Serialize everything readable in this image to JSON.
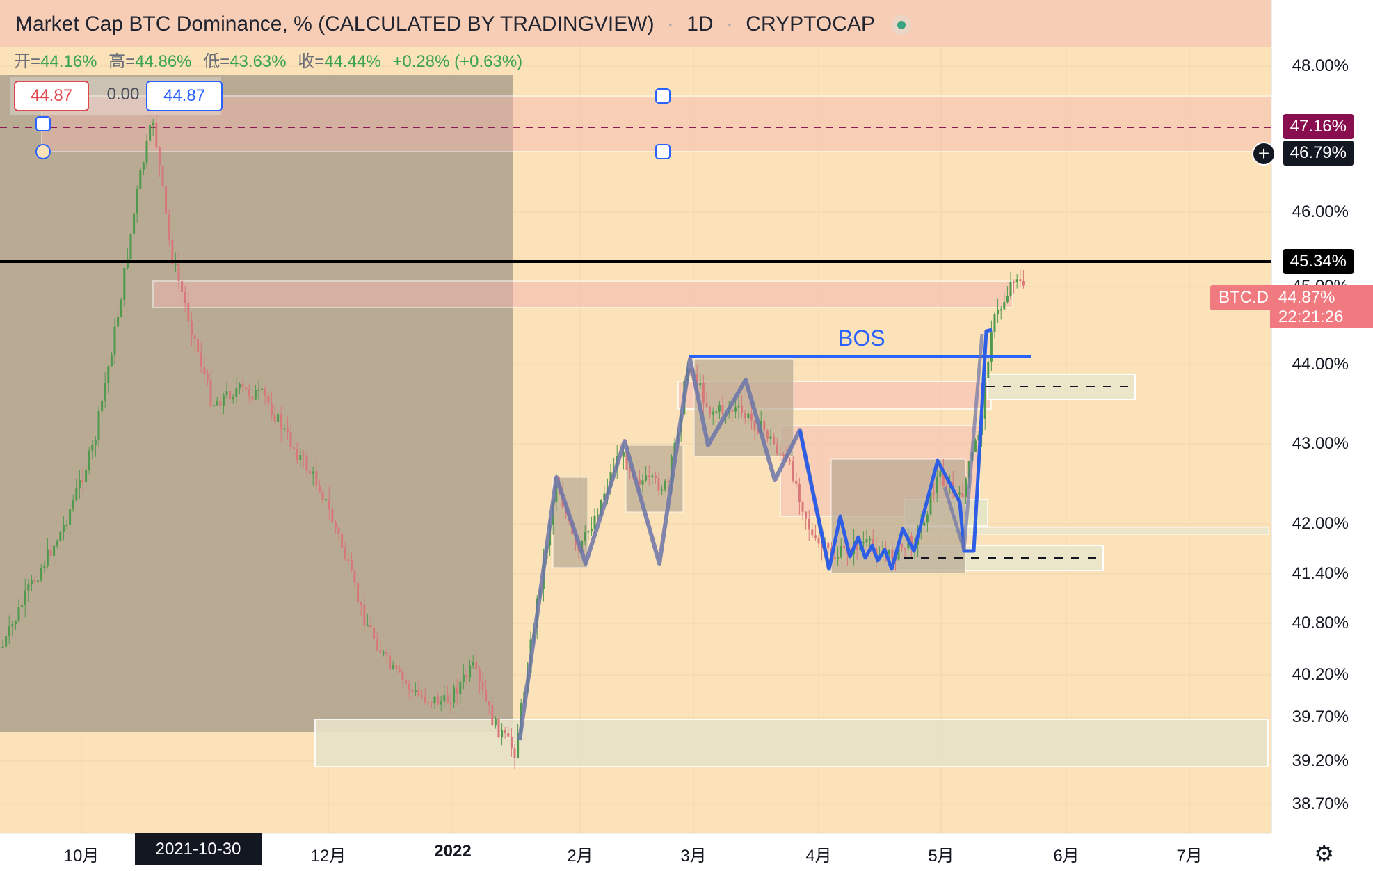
{
  "legend": {
    "title": "Market Cap BTC Dominance, % (CALCULATED BY TRADINGVIEW)",
    "interval": "1D",
    "exchange": "CRYPTOCAP"
  },
  "ohlc": {
    "open_label": "开=",
    "open": "44.16%",
    "high_label": "高=",
    "high": "44.86%",
    "low_label": "低=",
    "low": "43.63%",
    "close_label": "收=",
    "close": "44.44%",
    "change": "+0.28% (+0.63%)"
  },
  "measure_tool": {
    "left": "44.87",
    "middle": "0.00",
    "right": "44.87"
  },
  "price_axis": {
    "labels": [
      {
        "text": "48.00%",
        "price": 48.0
      },
      {
        "text": "46.00%",
        "price": 46.0
      },
      {
        "text": "45.00%",
        "price": 45.0
      },
      {
        "text": "44.00%",
        "price": 44.0
      },
      {
        "text": "43.00%",
        "price": 43.0
      },
      {
        "text": "42.00%",
        "price": 42.0
      },
      {
        "text": "41.40%",
        "price": 41.4
      },
      {
        "text": "40.80%",
        "price": 40.8
      },
      {
        "text": "40.20%",
        "price": 40.2
      },
      {
        "text": "39.70%",
        "price": 39.7
      },
      {
        "text": "39.20%",
        "price": 39.2
      },
      {
        "text": "38.70%",
        "price": 38.7
      }
    ],
    "tag_purple": "47.16%",
    "tag_dark": "46.79%",
    "tag_black": "45.34%",
    "symbol_tag": "BTC.D",
    "last_price": "44.87%",
    "countdown": "22:21:26"
  },
  "time_axis": {
    "labels": [
      {
        "text": "10月",
        "bold": false
      },
      {
        "text": "12月",
        "bold": false
      },
      {
        "text": "2022",
        "bold": true
      },
      {
        "text": "2月",
        "bold": false
      },
      {
        "text": "3月",
        "bold": false
      },
      {
        "text": "4月",
        "bold": false
      },
      {
        "text": "5月",
        "bold": false
      },
      {
        "text": "6月",
        "bold": false
      },
      {
        "text": "7月",
        "bold": false
      }
    ],
    "crosshair_date": "2021-10-30"
  },
  "annotations": {
    "bos": "BOS"
  },
  "colors": {
    "background": "#fbe2b8",
    "up_candle": "#4f9a4c",
    "down_candle": "#d8787a",
    "line_tool": "#2962ff",
    "horizontal_line": "#000000"
  }
}
